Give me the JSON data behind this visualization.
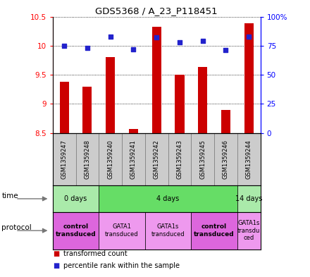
{
  "title": "GDS5368 / A_23_P118451",
  "samples": [
    "GSM1359247",
    "GSM1359248",
    "GSM1359240",
    "GSM1359241",
    "GSM1359242",
    "GSM1359243",
    "GSM1359245",
    "GSM1359246",
    "GSM1359244"
  ],
  "transformed_counts": [
    9.38,
    9.29,
    9.8,
    8.57,
    10.32,
    9.5,
    9.63,
    8.9,
    10.38
  ],
  "percentile_ranks": [
    75,
    73,
    83,
    72,
    82,
    78,
    79,
    71,
    83
  ],
  "bar_bottom": 8.5,
  "ylim_left": [
    8.5,
    10.5
  ],
  "ylim_right": [
    0,
    100
  ],
  "yticks_left": [
    8.5,
    9.0,
    9.5,
    10.0,
    10.5
  ],
  "ytick_labels_left": [
    "8.5",
    "9",
    "9.5",
    "10",
    "10.5"
  ],
  "yticks_right": [
    0,
    25,
    50,
    75,
    100
  ],
  "ytick_labels_right": [
    "0",
    "25",
    "50",
    "75",
    "100%"
  ],
  "bar_color": "#cc0000",
  "dot_color": "#2222cc",
  "grid_color": "black",
  "time_groups": [
    {
      "label": "0 days",
      "start": 0,
      "end": 2,
      "color": "#aaeaaa"
    },
    {
      "label": "4 days",
      "start": 2,
      "end": 8,
      "color": "#66dd66"
    },
    {
      "label": "14 days",
      "start": 8,
      "end": 9,
      "color": "#aaeaaa"
    }
  ],
  "protocol_groups": [
    {
      "label": "control\ntransduced",
      "start": 0,
      "end": 2,
      "color": "#dd66dd",
      "bold": true
    },
    {
      "label": "GATA1\ntransduced",
      "start": 2,
      "end": 4,
      "color": "#ee99ee",
      "bold": false
    },
    {
      "label": "GATA1s\ntransduced",
      "start": 4,
      "end": 6,
      "color": "#ee99ee",
      "bold": false
    },
    {
      "label": "control\ntransduced",
      "start": 6,
      "end": 8,
      "color": "#dd66dd",
      "bold": true
    },
    {
      "label": "GATA1s\ntransdu\nced",
      "start": 8,
      "end": 9,
      "color": "#ee99ee",
      "bold": false
    }
  ],
  "bg_color": "#ffffff",
  "sample_bg_color": "#cccccc",
  "sample_sep_color": "#888888"
}
